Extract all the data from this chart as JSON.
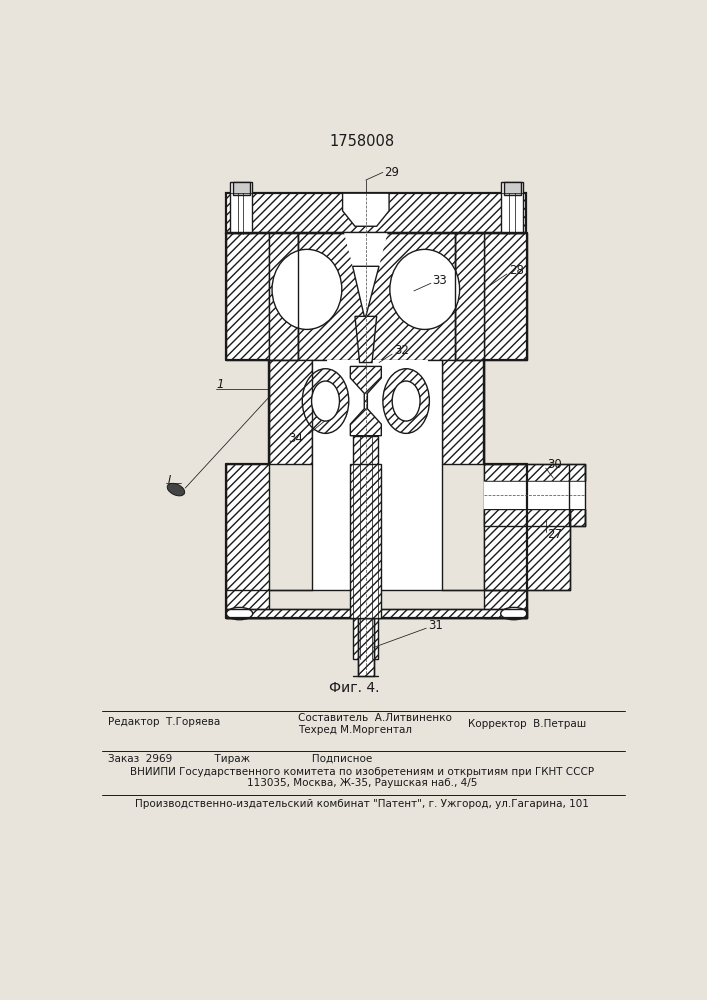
{
  "title": "1758008",
  "fig_label": "Фиг. 4.",
  "bg_color": "#e8e4dc",
  "line_color": "#1a1a1a",
  "editor": "Редактор  Т.Горяева",
  "compiler1": "Составитель  А.Литвиненко",
  "compiler2": "Техред М.Моргентал",
  "corrector": "Корректор  В.Петраш",
  "order": "Заказ  2969             Тираж                   Подписное",
  "vniiipi1": "ВНИИПИ Государственного комитета по изобретениям и открытиям при ГКНТ СССР",
  "vniiipi2": "113035, Москва, Ж-35, Раушская наб., 4/5",
  "publisher": "Производственно-издательский комбинат \"Патент\", г. Ужгород, ул.Гагарина, 101"
}
